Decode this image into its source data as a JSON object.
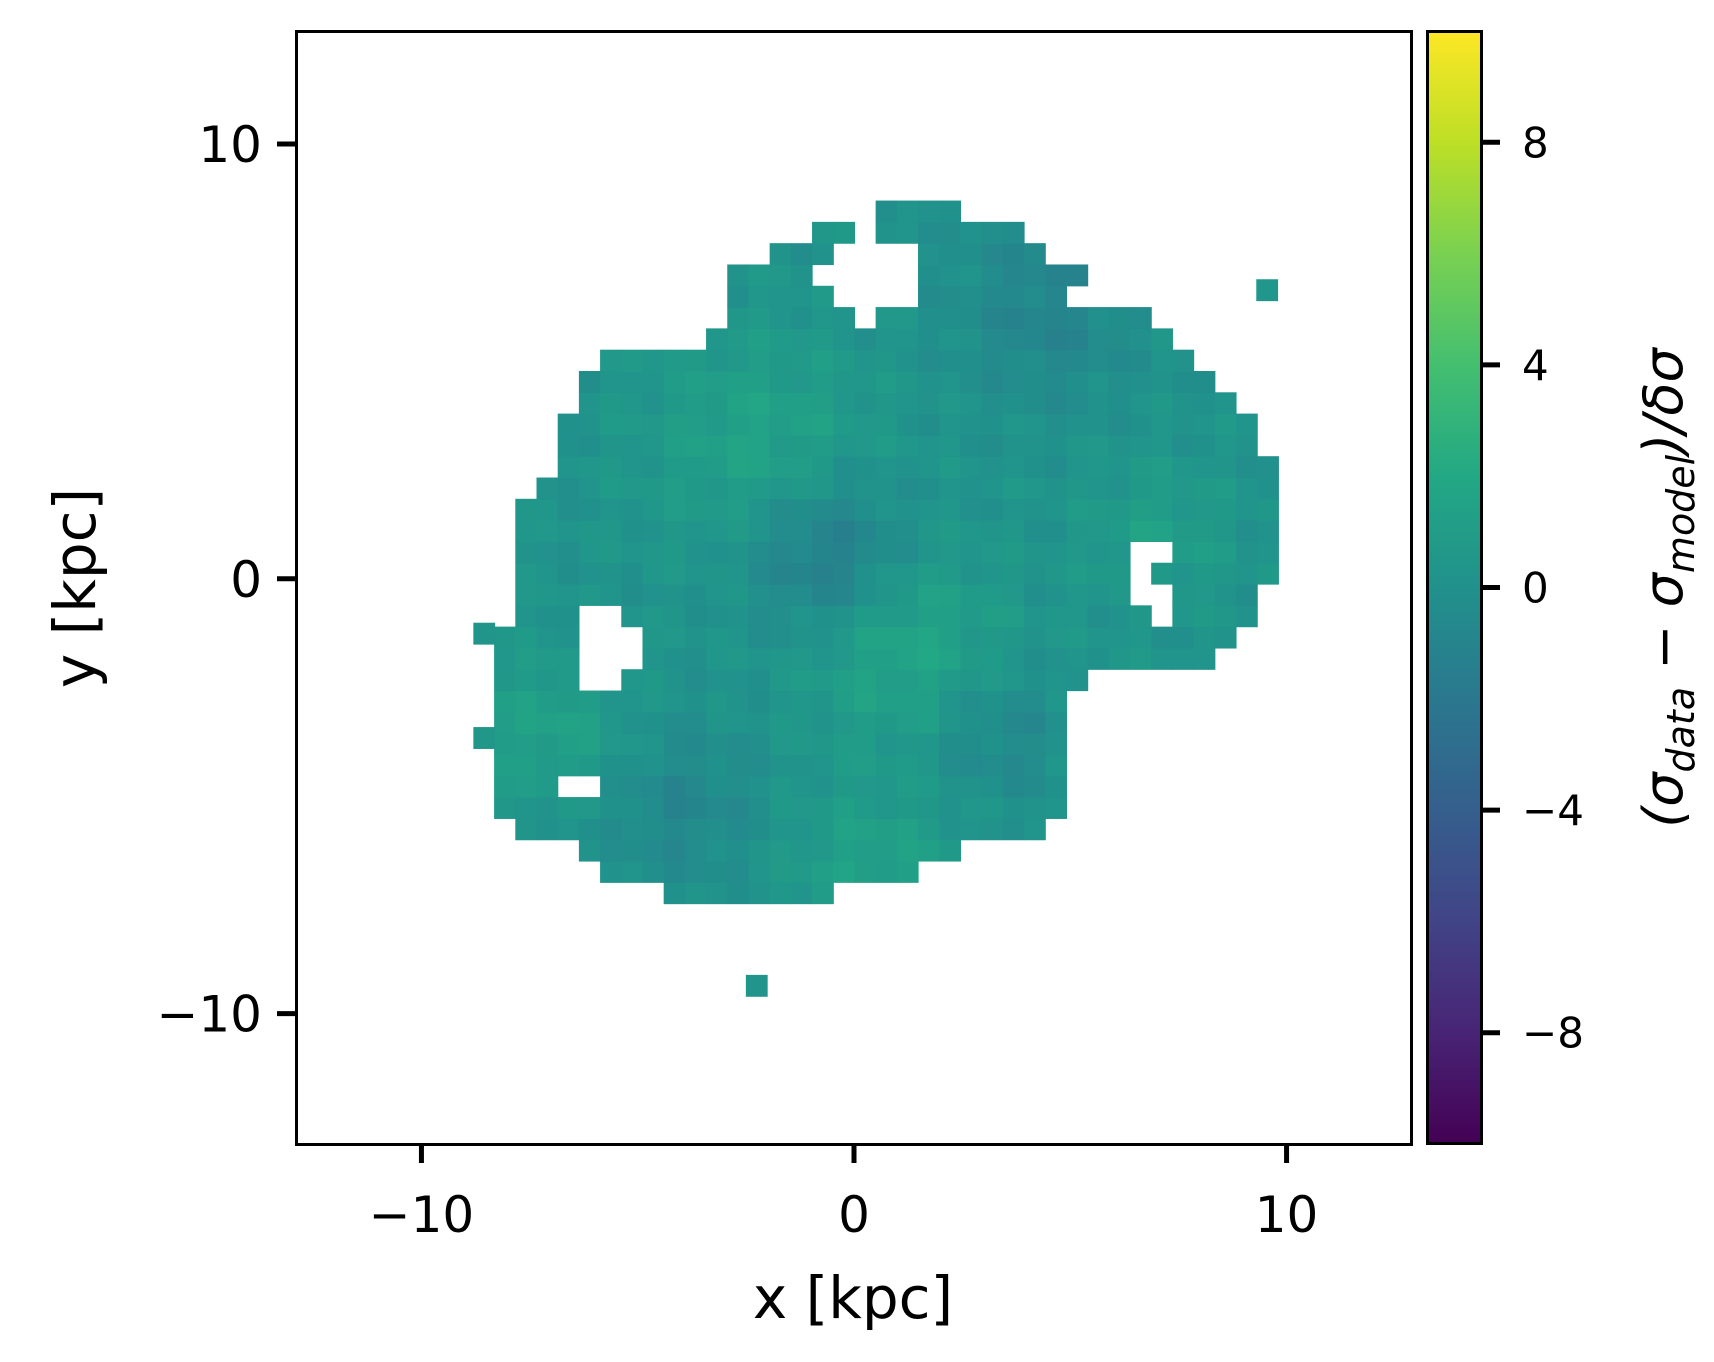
{
  "chart_data": {
    "type": "heatmap",
    "title": "",
    "xlabel": "x [kpc]",
    "ylabel": "y [kpc]",
    "xlim": [
      -12.9,
      12.9
    ],
    "ylim": [
      -13.0,
      12.6
    ],
    "x_ticks": [
      {
        "value": -10,
        "label": "−10"
      },
      {
        "value": 0,
        "label": "0"
      },
      {
        "value": 10,
        "label": "10"
      }
    ],
    "y_ticks": [
      {
        "value": 10,
        "label": "10"
      },
      {
        "value": 0,
        "label": "0"
      },
      {
        "value": -10,
        "label": "−10"
      }
    ],
    "grid": false,
    "pixel_size_kpc": 0.49,
    "colormap": "viridis",
    "colorbar": {
      "label": "(σ_data − σ_model)/δσ",
      "label_parts": {
        "open": "(σ",
        "sub1": "data",
        "mid": " − σ",
        "sub2": "model",
        "close": ")/δσ"
      },
      "range": [
        -10,
        10
      ],
      "ticks": [
        {
          "value": 8,
          "label": "8"
        },
        {
          "value": 4,
          "label": "4"
        },
        {
          "value": 0,
          "label": "0"
        },
        {
          "value": -4,
          "label": "−4"
        },
        {
          "value": -8,
          "label": "−8"
        }
      ]
    },
    "notes": "Map of normalized velocity-dispersion residuals; values mostly between about -3 and +3, with isolated minima near (-0.5, 1) and a slightly positive region near (1.5, -1.5)."
  }
}
